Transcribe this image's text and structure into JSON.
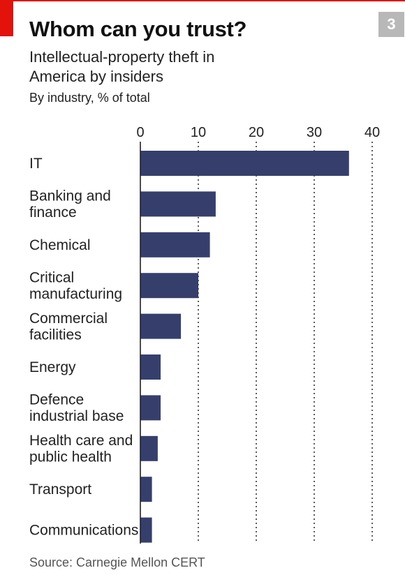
{
  "header": {
    "title": "Whom can you trust?",
    "subtitle": "Intellectual-property theft in America by insiders",
    "unit": "By industry, % of total",
    "badge": "3"
  },
  "footer": {
    "source": "Source: Carnegie Mellon CERT"
  },
  "colors": {
    "bar": "#363f6c",
    "accent": "#e3120b",
    "badge": "#b8b8b8"
  },
  "chart_data": {
    "type": "bar",
    "orientation": "horizontal",
    "categories": [
      [
        "IT"
      ],
      [
        "Banking and",
        "finance"
      ],
      [
        "Chemical"
      ],
      [
        "Critical",
        "manufacturing"
      ],
      [
        "Commercial",
        "facilities"
      ],
      [
        "Energy"
      ],
      [
        "Defence",
        "industrial base"
      ],
      [
        "Health care and",
        "public health"
      ],
      [
        "Transport"
      ],
      [
        "Communications"
      ]
    ],
    "values": [
      36,
      13,
      12,
      10,
      7,
      3.5,
      3.5,
      3,
      2,
      2
    ],
    "xlim": [
      0,
      40
    ],
    "xticks": [
      0,
      10,
      20,
      30,
      40
    ],
    "grid": "vertical-dotted",
    "axis_position": "top"
  }
}
